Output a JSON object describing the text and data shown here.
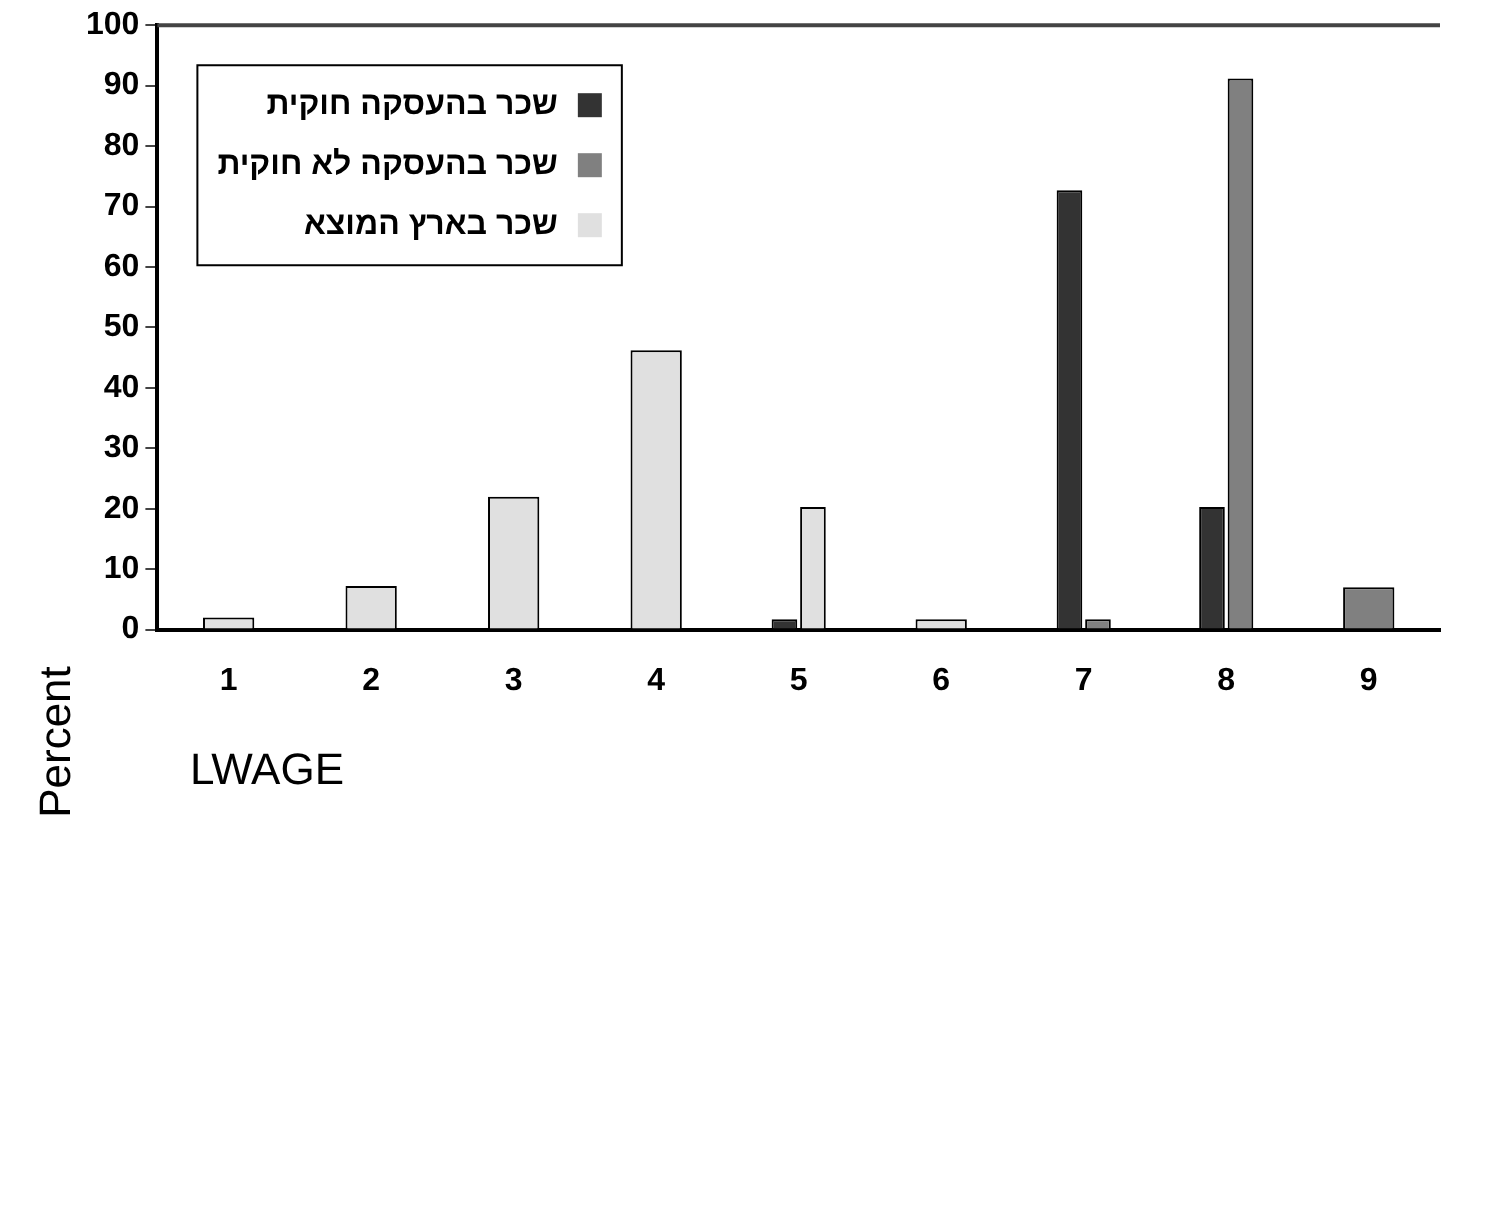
{
  "chart_data": {
    "type": "bar",
    "xlabel": "LWAGE",
    "ylabel": "Percent",
    "categories": [
      "1",
      "2",
      "3",
      "4",
      "5",
      "6",
      "7",
      "8",
      "9"
    ],
    "series": [
      {
        "name": "שכר בהעסקה חוקית",
        "color": "#333333",
        "values": [
          null,
          null,
          null,
          null,
          1.7,
          null,
          72.7,
          20.3,
          null
        ]
      },
      {
        "name": "שכר בהעסקה לא חוקית",
        "color": "#808080",
        "values": [
          null,
          null,
          null,
          null,
          null,
          null,
          1.7,
          91.2,
          7
        ]
      },
      {
        "name": "שכר בארץ המוצא",
        "color": "#e0e0e0",
        "values": [
          2,
          7.2,
          22,
          46.2,
          20.3,
          1.7,
          null,
          null,
          null
        ]
      }
    ],
    "ylim": [
      0,
      100
    ],
    "yticks": [
      0,
      10,
      20,
      30,
      40,
      50,
      60,
      70,
      80,
      90,
      100
    ],
    "grid": false,
    "legend": "top left"
  }
}
